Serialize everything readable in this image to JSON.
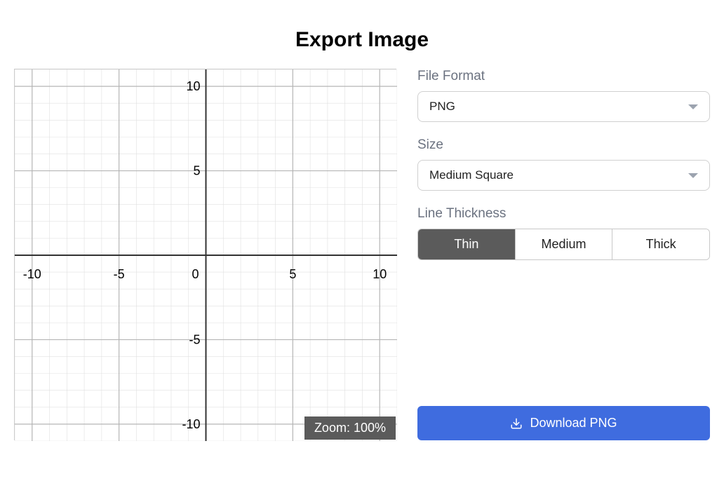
{
  "title": "Export Image",
  "graph": {
    "xlim": [
      -11,
      11
    ],
    "ylim": [
      -11,
      11
    ],
    "major_ticks_x": [
      -10,
      -5,
      0,
      5,
      10
    ],
    "major_ticks_y": [
      -10,
      -5,
      0,
      5,
      10
    ],
    "x_labels": [
      "-10",
      "-5",
      "0",
      "5",
      "10"
    ],
    "y_labels": [
      "-10",
      "-5",
      "5",
      "10"
    ],
    "minor_step": 1,
    "minor_grid_color": "#e0e0e0",
    "major_grid_color": "#b5b5b5",
    "axis_color": "#333333",
    "background_color": "#ffffff",
    "tick_fontsize": 18,
    "tick_color": "#000000",
    "axis_line_width": 2,
    "major_grid_width": 1.2,
    "minor_grid_width": 0.6
  },
  "zoom_label": "Zoom: 100%",
  "file_format": {
    "label": "File Format",
    "selected": "PNG"
  },
  "size": {
    "label": "Size",
    "selected": "Medium Square"
  },
  "line_thickness": {
    "label": "Line Thickness",
    "options": [
      "Thin",
      "Medium",
      "Thick"
    ],
    "active_index": 0
  },
  "download_button_label": "Download PNG",
  "colors": {
    "primary_button_bg": "#3f6cdf",
    "primary_button_text": "#ffffff",
    "segment_active_bg": "#5b5b5b",
    "segment_active_text": "#ffffff",
    "label_text": "#6b7280",
    "zoom_badge_bg": "#5b5b5b",
    "zoom_badge_text": "#ffffff"
  }
}
